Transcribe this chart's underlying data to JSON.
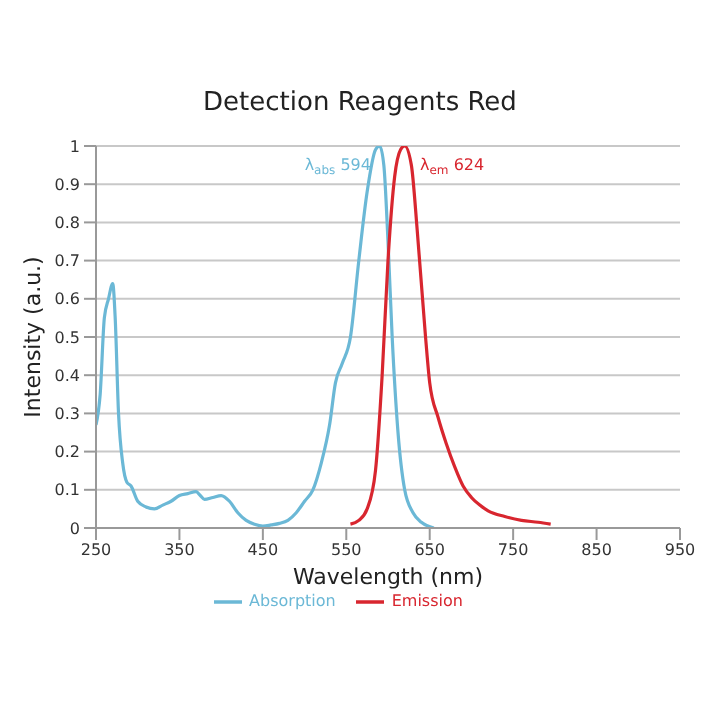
{
  "chart_data": {
    "type": "line",
    "title": "Detection Reagents Red",
    "xlabel": "Wavelength (nm)",
    "ylabel": "Intensity (a.u.)",
    "xlim": [
      250,
      950
    ],
    "xticks": [
      250,
      350,
      450,
      550,
      650,
      750,
      850,
      950
    ],
    "ylim": [
      0,
      1
    ],
    "yticks": [
      0,
      0.1,
      0.2,
      0.3,
      0.4,
      0.5,
      0.6,
      0.7,
      0.8,
      0.9,
      1
    ],
    "grid": "y",
    "legend": "bottom",
    "marker": "none",
    "line_style": "solid",
    "annotations": [
      {
        "text": "λ$_{abs}$ 594",
        "x": 594,
        "y": 1
      },
      {
        "text": "λ$_{em}$ 624",
        "x": 624,
        "y": 1
      }
    ],
    "series": [
      {
        "name": "Absorption",
        "color": "#6bb8d6",
        "x": [
          250,
          255,
          260,
          265,
          270,
          273,
          277,
          282,
          287,
          292,
          300,
          310,
          320,
          330,
          340,
          350,
          360,
          370,
          375,
          380,
          390,
          400,
          410,
          420,
          430,
          440,
          450,
          460,
          470,
          480,
          490,
          500,
          510,
          520,
          530,
          537,
          545,
          555,
          565,
          575,
          585,
          590,
          595,
          600,
          605,
          612,
          620,
          630,
          640,
          655
        ],
        "values": [
          0.27,
          0.35,
          0.55,
          0.6,
          0.64,
          0.55,
          0.3,
          0.17,
          0.12,
          0.11,
          0.07,
          0.055,
          0.05,
          0.06,
          0.07,
          0.085,
          0.09,
          0.095,
          0.085,
          0.075,
          0.08,
          0.085,
          0.07,
          0.04,
          0.02,
          0.01,
          0.005,
          0.008,
          0.012,
          0.02,
          0.04,
          0.07,
          0.1,
          0.17,
          0.27,
          0.38,
          0.43,
          0.5,
          0.7,
          0.88,
          0.99,
          1.0,
          0.95,
          0.75,
          0.5,
          0.25,
          0.1,
          0.04,
          0.015,
          0.0
        ]
      },
      {
        "name": "Emission",
        "color": "#d8262f",
        "x": [
          555,
          565,
          575,
          585,
          593,
          600,
          608,
          615,
          620,
          628,
          635,
          645,
          650,
          660,
          670,
          680,
          690,
          700,
          710,
          720,
          740,
          760,
          780,
          795
        ],
        "values": [
          0.01,
          0.02,
          0.05,
          0.15,
          0.4,
          0.7,
          0.92,
          0.99,
          1.0,
          0.95,
          0.78,
          0.5,
          0.38,
          0.29,
          0.22,
          0.16,
          0.11,
          0.08,
          0.06,
          0.045,
          0.03,
          0.02,
          0.015,
          0.01
        ]
      }
    ]
  }
}
